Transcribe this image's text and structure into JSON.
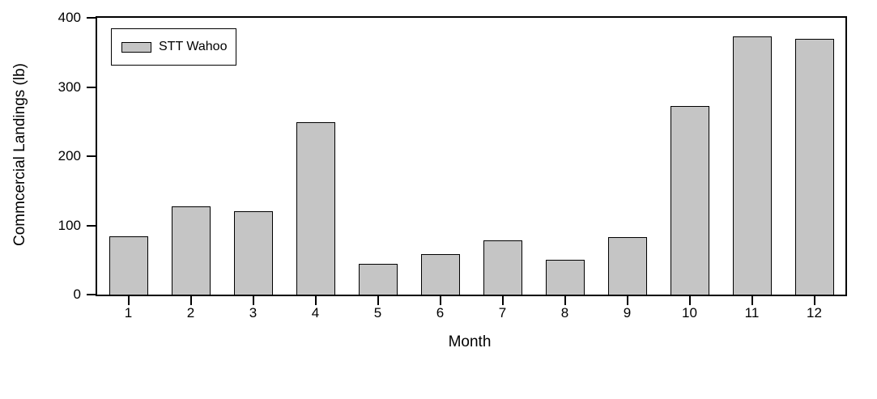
{
  "chart_data": {
    "type": "bar",
    "title": "",
    "categories": [
      "1",
      "2",
      "3",
      "4",
      "5",
      "6",
      "7",
      "8",
      "9",
      "10",
      "11",
      "12"
    ],
    "values": [
      84,
      127,
      121,
      249,
      44,
      59,
      78,
      50,
      83,
      273,
      373,
      370
    ],
    "series_name": "STT Wahoo",
    "xlabel": "Month",
    "ylabel": "Commcercial Landings (lb)",
    "ylim": [
      0,
      400
    ],
    "y_ticks": [
      0,
      100,
      200,
      300,
      400
    ],
    "legend_position": "top-left",
    "grid": false,
    "bar_color": "#c5c5c5",
    "bar_border_color": "#000000",
    "axis_color": "#000000",
    "background_color": "#ffffff"
  }
}
